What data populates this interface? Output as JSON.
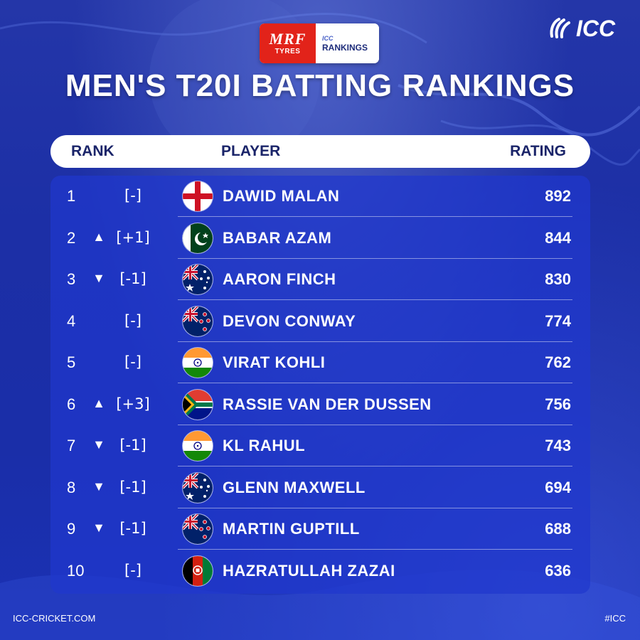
{
  "sponsor": {
    "brand": "MRF",
    "sub": "TYRES",
    "icc_small": "ICC",
    "rankings": "RANKINGS"
  },
  "logo": {
    "text": "ICC"
  },
  "page_title": "MEN'S T20I BATTING RANKINGS",
  "header": {
    "rank": "RANK",
    "player": "PLAYER",
    "rating": "RATING"
  },
  "rows": [
    {
      "rank": "1",
      "arrow": "",
      "move": "[-]",
      "flag": "England",
      "player": "DAWID MALAN",
      "rating": "892"
    },
    {
      "rank": "2",
      "arrow": "▲",
      "move": "[+1]",
      "flag": "Pakistan",
      "player": "BABAR AZAM",
      "rating": "844"
    },
    {
      "rank": "3",
      "arrow": "▼",
      "move": "[-1]",
      "flag": "Australia",
      "player": "AARON FINCH",
      "rating": "830"
    },
    {
      "rank": "4",
      "arrow": "",
      "move": "[-]",
      "flag": "New Zealand",
      "player": "DEVON CONWAY",
      "rating": "774"
    },
    {
      "rank": "5",
      "arrow": "",
      "move": "[-]",
      "flag": "India",
      "player": "VIRAT KOHLI",
      "rating": "762"
    },
    {
      "rank": "6",
      "arrow": "▲",
      "move": "[+3]",
      "flag": "South Africa",
      "player": "RASSIE VAN DER DUSSEN",
      "rating": "756"
    },
    {
      "rank": "7",
      "arrow": "▼",
      "move": "[-1]",
      "flag": "India",
      "player": "KL RAHUL",
      "rating": "743"
    },
    {
      "rank": "8",
      "arrow": "▼",
      "move": "[-1]",
      "flag": "Australia",
      "player": "GLENN MAXWELL",
      "rating": "694"
    },
    {
      "rank": "9",
      "arrow": "▼",
      "move": "[-1]",
      "flag": "New Zealand",
      "player": "MARTIN GUPTILL",
      "rating": "688"
    },
    {
      "rank": "10",
      "arrow": "",
      "move": "[-]",
      "flag": "Afghanistan",
      "player": "HAZRATULLAH ZAZAI",
      "rating": "636"
    }
  ],
  "footer": {
    "left": "ICC-CRICKET.COM",
    "right": "#ICC"
  },
  "colors": {
    "background": "#1c2fa6",
    "panel": "#2038cd",
    "header_bar": "#ffffff",
    "header_text": "#1a2469",
    "mrf_red": "#e2231a"
  }
}
